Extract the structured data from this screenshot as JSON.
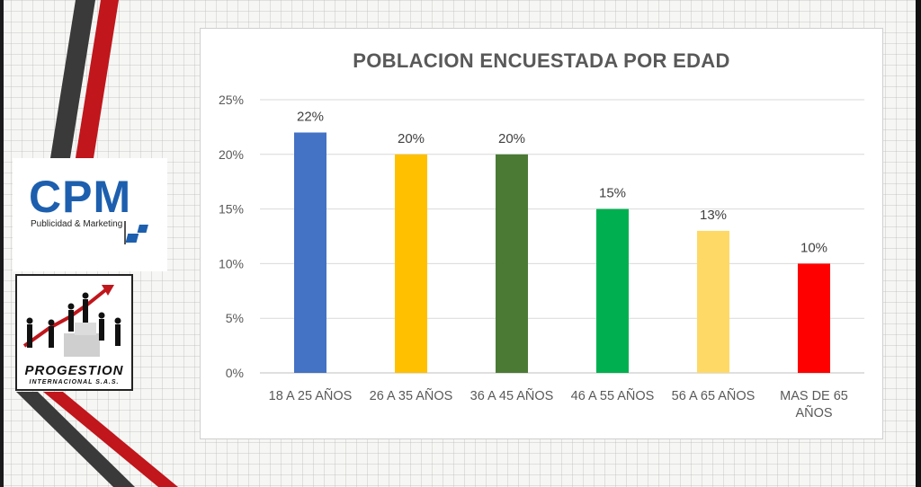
{
  "branding": {
    "cpm_name": "CPM",
    "cpm_tagline": "Publicidad & Marketing",
    "progestion_name": "PROGESTION",
    "progestion_sub": "INTERNACIONAL S.A.S."
  },
  "colors": {
    "bar_1": "#4472c4",
    "bar_2": "#ffc000",
    "bar_3": "#4b7a35",
    "bar_4": "#00b050",
    "bar_5": "#ffd966",
    "bar_6": "#ff0000",
    "stripe_dark": "#3a3a3a",
    "stripe_red": "#c0161c"
  },
  "chart_data": {
    "type": "bar",
    "title": "POBLACION ENCUESTADA POR EDAD",
    "categories": [
      "18 A 25 AÑOS",
      "26 A 35 AÑOS",
      "36 A 45 AÑOS",
      "46 A 55 AÑOS",
      "56 A 65 AÑOS",
      "MAS DE 65 AÑOS"
    ],
    "values": [
      22,
      20,
      20,
      15,
      13,
      10
    ],
    "data_labels": [
      "22%",
      "20%",
      "20%",
      "15%",
      "13%",
      "10%"
    ],
    "yticks": [
      "0%",
      "5%",
      "10%",
      "15%",
      "20%",
      "25%"
    ],
    "ylim": [
      0,
      25
    ],
    "grid": true,
    "legend": "none",
    "xlabel": "",
    "ylabel": ""
  }
}
